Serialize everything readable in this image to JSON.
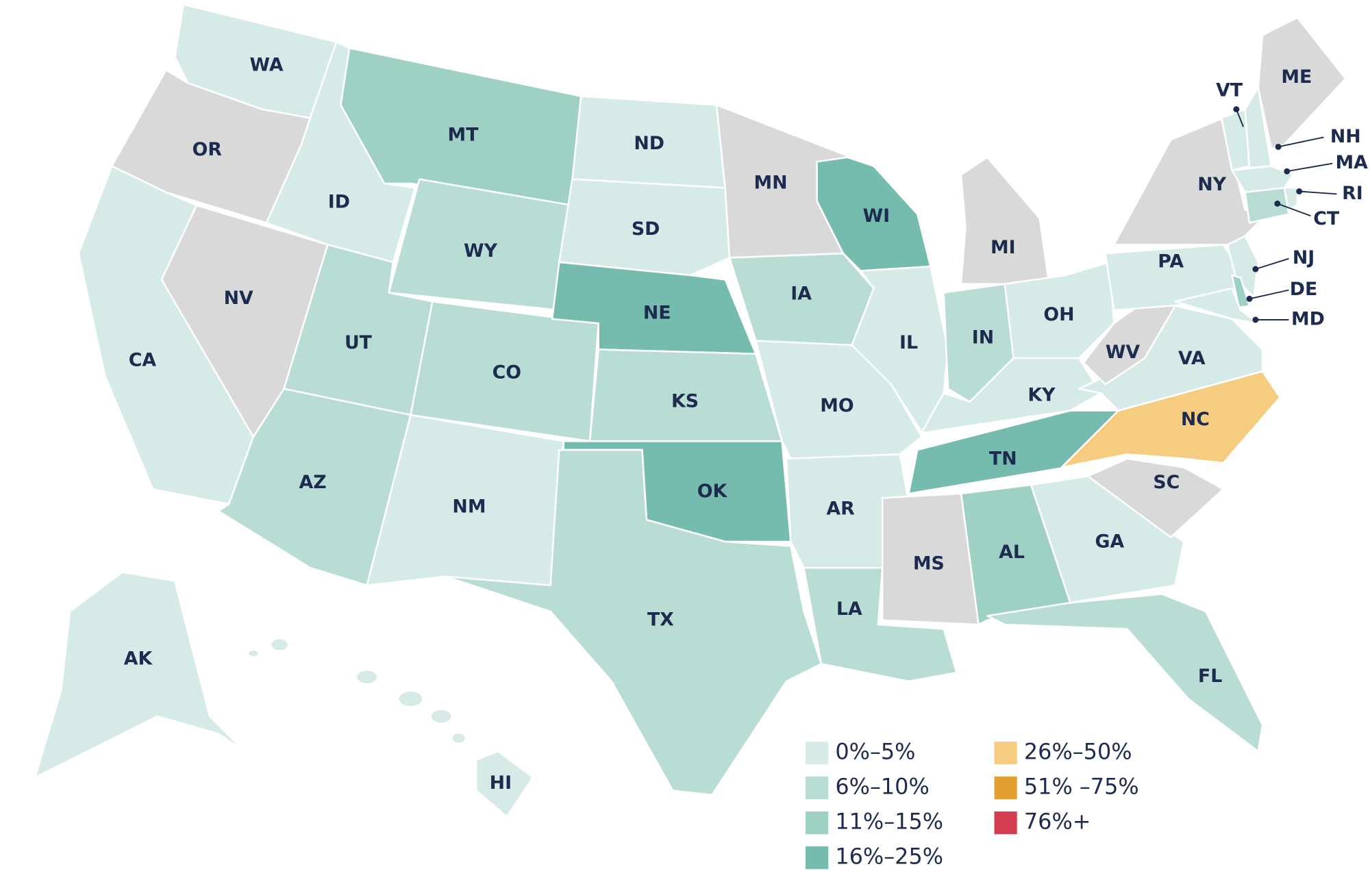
{
  "states": [
    {
      "label": "WA",
      "color": "#d6ebe7"
    },
    {
      "label": "OR",
      "color": "#d9d9d9"
    },
    {
      "label": "CA",
      "color": "#d6ebe7"
    },
    {
      "label": "NV",
      "color": "#d9d9d9"
    },
    {
      "label": "ID",
      "color": "#d6ebe7"
    },
    {
      "label": "MT",
      "color": "#9ed1c4"
    },
    {
      "label": "WY",
      "color": "#b9ddd5"
    },
    {
      "label": "UT",
      "color": "#b9ddd5"
    },
    {
      "label": "AZ",
      "color": "#b9ddd5"
    },
    {
      "label": "CO",
      "color": "#b9ddd5"
    },
    {
      "label": "NM",
      "color": "#d6ebe7"
    },
    {
      "label": "ND",
      "color": "#d6ebe7"
    },
    {
      "label": "SD",
      "color": "#d6ebe7"
    },
    {
      "label": "NE",
      "color": "#76bcae"
    },
    {
      "label": "KS",
      "color": "#b9ddd5"
    },
    {
      "label": "OK",
      "color": "#76bcae"
    },
    {
      "label": "TX",
      "color": "#b9ddd5"
    },
    {
      "label": "MN",
      "color": "#d9d9d9"
    },
    {
      "label": "IA",
      "color": "#b9ddd5"
    },
    {
      "label": "MO",
      "color": "#d6ebe7"
    },
    {
      "label": "AR",
      "color": "#d6ebe7"
    },
    {
      "label": "LA",
      "color": "#b9ddd5"
    },
    {
      "label": "WI",
      "color": "#76bcae"
    },
    {
      "label": "IL",
      "color": "#d6ebe7"
    },
    {
      "label": "MI",
      "color": "#d9d9d9"
    },
    {
      "label": "IN",
      "color": "#b9ddd5"
    },
    {
      "label": "OH",
      "color": "#d6ebe7"
    },
    {
      "label": "KY",
      "color": "#d6ebe7"
    },
    {
      "label": "TN",
      "color": "#76bcae"
    },
    {
      "label": "MS",
      "color": "#d9d9d9"
    },
    {
      "label": "AL",
      "color": "#9ed1c4"
    },
    {
      "label": "GA",
      "color": "#d6ebe7"
    },
    {
      "label": "FL",
      "color": "#b9ddd5"
    },
    {
      "label": "SC",
      "color": "#d9d9d9"
    },
    {
      "label": "NC",
      "color": "#f6cd80"
    },
    {
      "label": "VA",
      "color": "#d6ebe7"
    },
    {
      "label": "WV",
      "color": "#d9d9d9"
    },
    {
      "label": "PA",
      "color": "#d6ebe7"
    },
    {
      "label": "NY",
      "color": "#d9d9d9"
    },
    {
      "label": "VT",
      "color": "#d6ebe7"
    },
    {
      "label": "NH",
      "color": "#d6ebe7"
    },
    {
      "label": "ME",
      "color": "#d9d9d9"
    },
    {
      "label": "MA",
      "color": "#d6ebe7"
    },
    {
      "label": "CT",
      "color": "#b9ddd5"
    },
    {
      "label": "RI",
      "color": "#d6ebe7"
    },
    {
      "label": "NJ",
      "color": "#d6ebe7"
    },
    {
      "label": "DE",
      "color": "#9ed1c4"
    },
    {
      "label": "MD",
      "color": "#d6ebe7"
    },
    {
      "label": "AK",
      "color": "#d6ebe7"
    },
    {
      "label": "HI",
      "color": "#d6ebe7"
    }
  ],
  "legend": [
    {
      "label": "0%–5%",
      "color": "#d6ebe7"
    },
    {
      "label": "6%–10%",
      "color": "#b9ddd5"
    },
    {
      "label": "11%–15%",
      "color": "#9ed1c4"
    },
    {
      "label": "16%–25%",
      "color": "#76bcae"
    },
    {
      "label": "26%–50%",
      "color": "#f6cd80"
    },
    {
      "label": "51% –75%",
      "color": "#e3a030"
    },
    {
      "label": "76%+",
      "color": "#d43c52"
    }
  ]
}
